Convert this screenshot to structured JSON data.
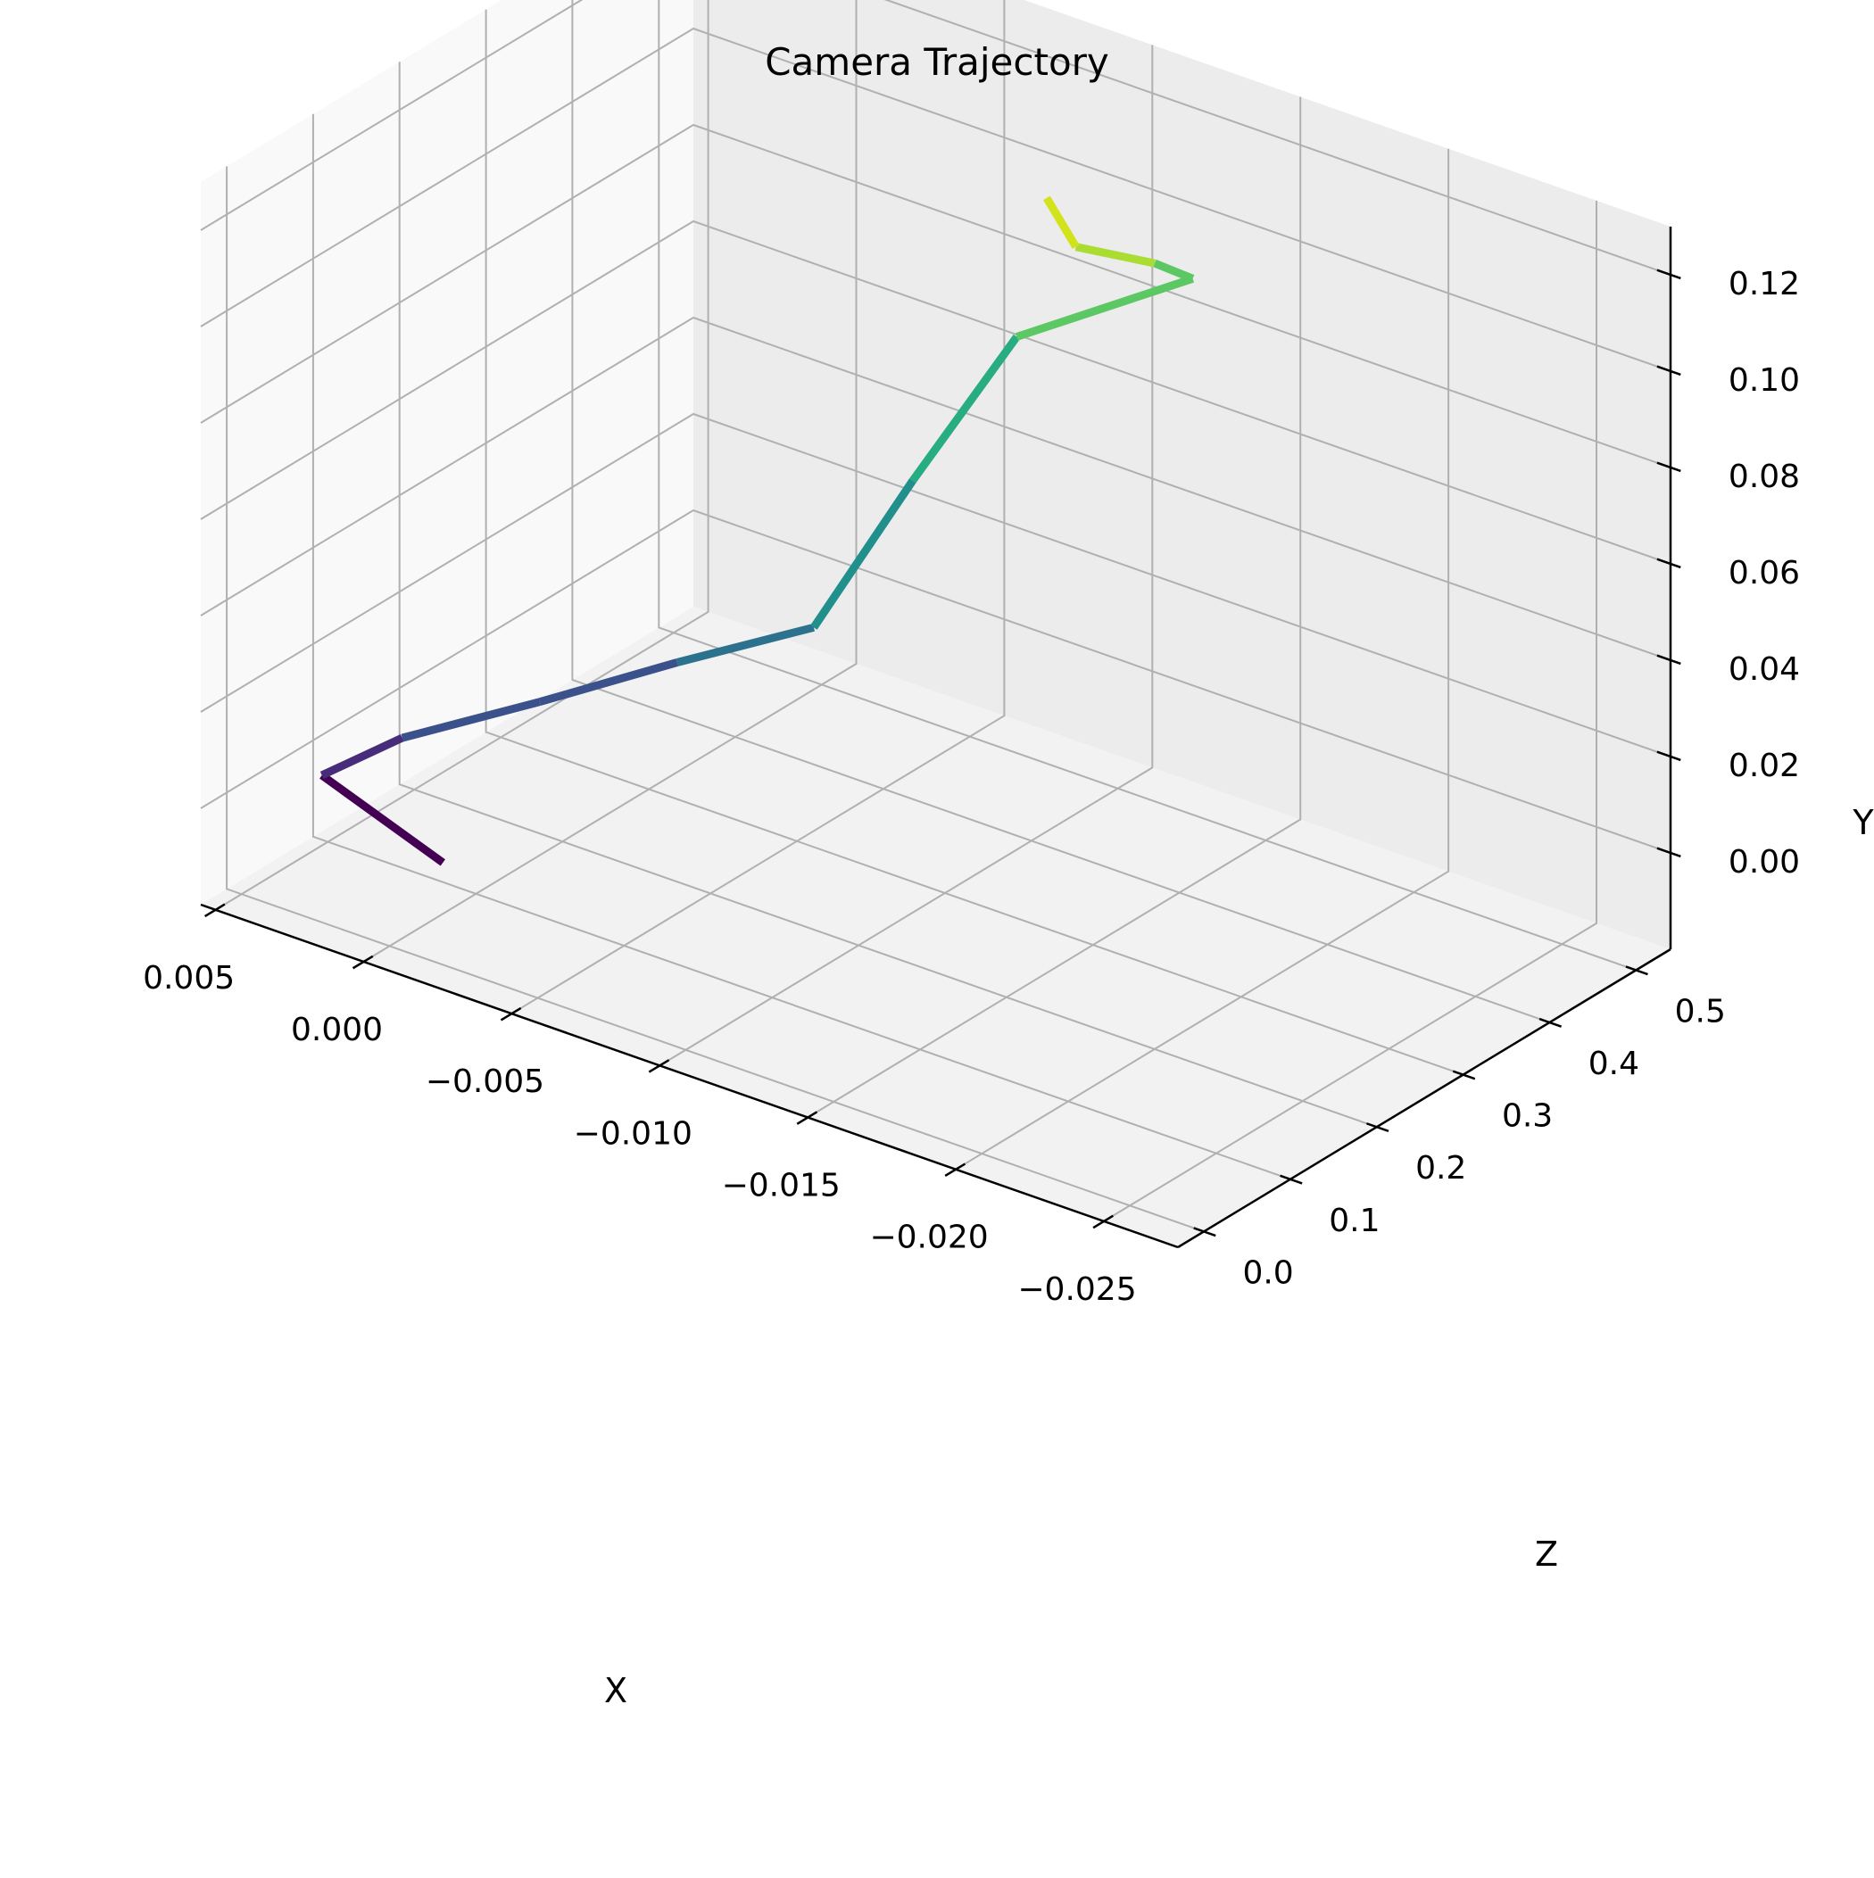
{
  "chart_data": {
    "type": "line",
    "projection": "3d",
    "title": "Camera Trajectory",
    "xlabel": "X",
    "ylabel": "Y",
    "zlabel": "Z",
    "x_ticks": [
      "−0.025",
      "−0.020",
      "−0.015",
      "−0.010",
      "−0.005",
      "0.000",
      "0.005"
    ],
    "y_ticks": [
      "0.00",
      "0.02",
      "0.04",
      "0.06",
      "0.08",
      "0.10",
      "0.12"
    ],
    "z_ticks": [
      "0.0",
      "0.1",
      "0.2",
      "0.3",
      "0.4",
      "0.5"
    ],
    "xlim": [
      -0.0275,
      0.0055
    ],
    "ylim": [
      -0.02,
      0.13
    ],
    "zlim": [
      -0.03,
      0.54
    ],
    "grid": true,
    "colormap": "viridis",
    "series": [
      {
        "x": [
          -0.0018,
          0.0036,
          0.0022,
          -0.0011,
          -0.0044,
          -0.0077,
          -0.0097,
          -0.0119,
          -0.0165,
          -0.0139,
          -0.0099,
          -0.0076
        ],
        "y": [
          0.0012,
          0.0028,
          0.0087,
          0.0183,
          0.0286,
          0.0381,
          0.0679,
          0.0976,
          0.1146,
          0.1073,
          0.0971,
          0.0974
        ],
        "z": [
          0.0,
          0.045,
          0.09,
          0.136,
          0.182,
          0.227,
          0.273,
          0.318,
          0.364,
          0.409,
          0.455,
          0.5
        ],
        "colors": [
          "#440154",
          "#472c7a",
          "#3b518b",
          "#2c718e",
          "#21908d",
          "#27ad81",
          "#5cc863",
          "#aadc32",
          "#d2e21b"
        ]
      }
    ]
  }
}
